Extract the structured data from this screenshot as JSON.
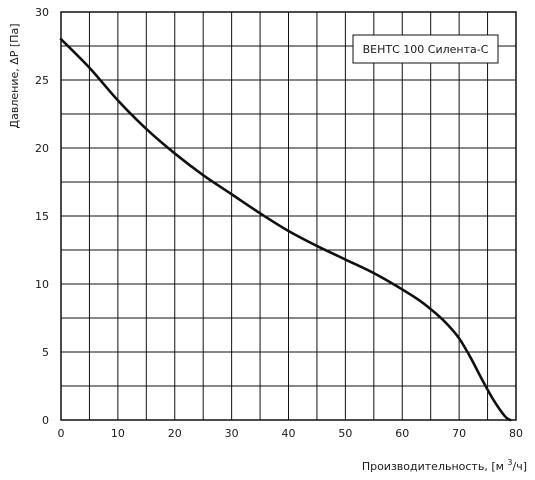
{
  "chart_data": {
    "type": "line",
    "title": "",
    "xlabel_main": "Производительность, [м ",
    "xlabel_sup": "3",
    "xlabel_end": "/ч]",
    "ylabel": "Давление, ΔP [Па]",
    "xlim": [
      0,
      80
    ],
    "ylim": [
      0,
      30
    ],
    "x_ticks": [
      "0",
      "10",
      "20",
      "30",
      "40",
      "50",
      "60",
      "70",
      "80"
    ],
    "y_ticks": [
      "0",
      "5",
      "10",
      "15",
      "20",
      "25",
      "30"
    ],
    "x_minor_step": 5,
    "y_minor_step": 2.5,
    "grid": true,
    "legend_position": "top-right",
    "series": [
      {
        "name": "ВЕНТС 100 Силента-С",
        "color": "#111111",
        "x": [
          0,
          5,
          10,
          15,
          20,
          25,
          30,
          35,
          40,
          45,
          50,
          55,
          60,
          63,
          66,
          68,
          70,
          72,
          74,
          76,
          78,
          79
        ],
        "y": [
          28,
          25.9,
          23.5,
          21.4,
          19.6,
          18.0,
          16.6,
          15.2,
          13.9,
          12.8,
          11.8,
          10.8,
          9.6,
          8.8,
          7.8,
          7.0,
          6.0,
          4.6,
          3.0,
          1.5,
          0.3,
          0
        ]
      }
    ]
  }
}
